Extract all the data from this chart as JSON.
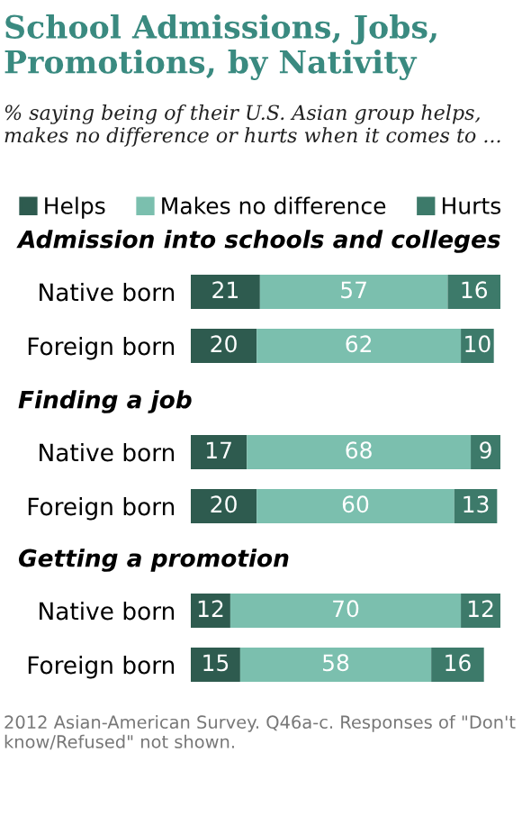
{
  "chart_data": [
    {
      "type": "bar",
      "orientation": "horizontal",
      "stacked": true,
      "data_labels": true,
      "legend": "top",
      "title": "School Admissions, Jobs, Promotions, by Nativity",
      "subtitle": "% saying being of their U.S. Asian group helps, makes no difference or hurts when it comes to ...",
      "annotations": [
        "Admission into schools and colleges"
      ],
      "categories": [
        "Native born",
        "Foreign born"
      ],
      "series": [
        {
          "name": "Helps",
          "color": "#2e5b4f",
          "values": [
            21,
            20
          ]
        },
        {
          "name": "Makes no difference",
          "color": "#7bbfae",
          "values": [
            57,
            62
          ]
        },
        {
          "name": "Hurts",
          "color": "#3d7a6a",
          "values": [
            16,
            10
          ]
        }
      ]
    },
    {
      "type": "bar",
      "orientation": "horizontal",
      "stacked": true,
      "data_labels": true,
      "title": "Finding a job",
      "categories": [
        "Native born",
        "Foreign born"
      ],
      "series": [
        {
          "color": "#2e5b4f",
          "values": [
            17,
            20
          ]
        },
        {
          "color": "#7bbfae",
          "values": [
            68,
            60
          ]
        },
        {
          "color": "#3d7a6a",
          "values": [
            9,
            13
          ]
        }
      ]
    },
    {
      "type": "bar",
      "orientation": "horizontal",
      "stacked": true,
      "data_labels": true,
      "title": "Getting a promotion",
      "annotations": [
        "2012 Asian-American Survey. Q46a-c. Responses of \"Don't know/Refused\" not shown."
      ],
      "categories": [
        "Native born",
        "Foreign born"
      ],
      "series": [
        {
          "color": "#2e5b4f",
          "values": [
            12,
            15
          ]
        },
        {
          "color": "#7bbfae",
          "values": [
            70,
            58
          ]
        },
        {
          "color": "#3d7a6a",
          "values": [
            12,
            16
          ]
        }
      ]
    }
  ]
}
